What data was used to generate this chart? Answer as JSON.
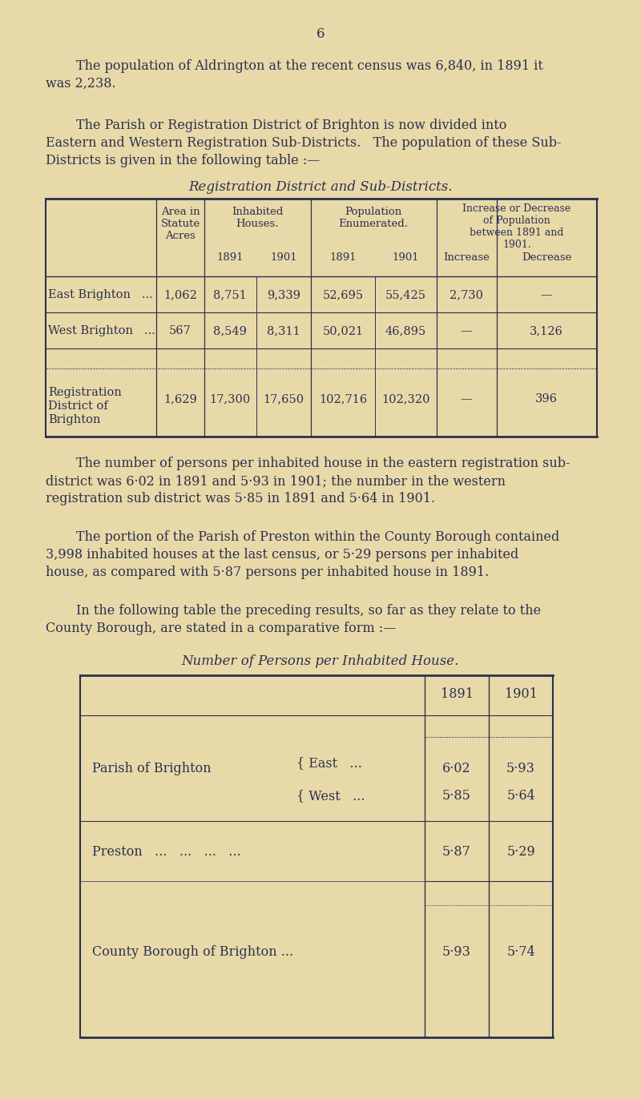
{
  "bg_color": "#e8d9a8",
  "text_color": "#2c3050",
  "page_number": "6",
  "para1_l1": "The population of Aldrington at the recent census was 6,840, in 1891 it",
  "para1_l2": "was 2,238.",
  "para2_l1": "The Parish or Registration District of Brighton is now divided into",
  "para2_l2": "Eastern and Western Registration Sub-Districts.   The population of these Sub-",
  "para2_l3": "Districts is given in the following table :—",
  "table1_title": "Registration District and Sub-Districts.",
  "table1_rows": [
    [
      "East Brighton",
      "...",
      "1,062",
      "8,751",
      "9,339",
      "52,695",
      "55,425",
      "2,730",
      "—"
    ],
    [
      "West Brighton",
      "...",
      "567",
      "8,549",
      "8,311",
      "50,021",
      "46,895",
      "—",
      "3,126"
    ],
    [
      "Registration\nDistrict of\nBrighton",
      "...",
      "1,629",
      "17,300",
      "17,650",
      "102,716",
      "102,320",
      "—",
      "396"
    ]
  ],
  "para3_l1": "The number of persons per inhabited house in the eastern registration sub-",
  "para3_l2": "district was 6·02 in 1891 and 5·93 in 1901; the number in the western",
  "para3_l3": "registration sub district was 5·85 in 1891 and 5·64 in 1901.",
  "para4_l1": "The portion of the Parish of Preston within the County Borough contained",
  "para4_l2": "3,998 inhabited houses at the last census, or 5·29 persons per inhabited",
  "para4_l3": "house, as compared with 5·87 persons per inhabited house in 1891.",
  "para5_l1": "In the following table the preceding results, so far as they relate to the",
  "para5_l2": "County Borough, are stated in a comparative form :—",
  "table2_title": "Number of Persons per Inhabited House.",
  "t2_east_1891": "6·02",
  "t2_east_1901": "5·93",
  "t2_west_1891": "5·85",
  "t2_west_1901": "5·64",
  "t2_preston_1891": "5·87",
  "t2_preston_1901": "5·29",
  "t2_county_1891": "5·93",
  "t2_county_1901": "5·74"
}
